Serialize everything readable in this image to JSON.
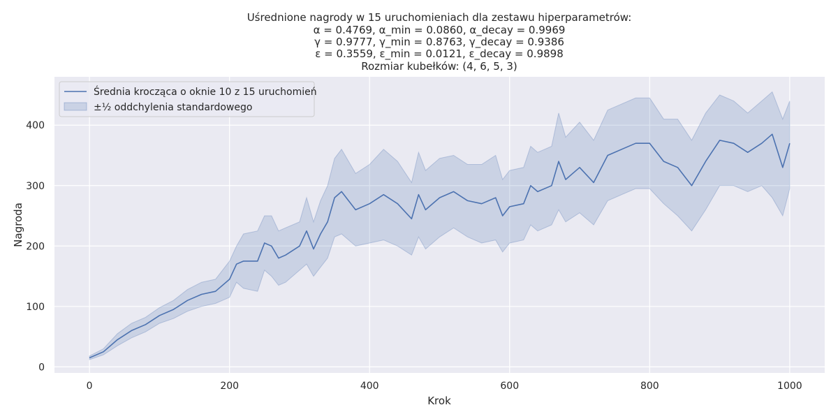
{
  "chart_data": {
    "type": "line",
    "title_lines": [
      "Uśrednione nagrody w 15 uruchomieniach dla zestawu hiperparametrów:",
      "α = 0.4769, α_min = 0.0860, α_decay = 0.9969",
      "γ = 0.9777, γ_min = 0.8763, γ_decay = 0.9386",
      "ε = 0.3559, ε_min = 0.0121, ε_decay = 0.9898",
      "Rozmiar kubełków: (4, 6, 5, 3)"
    ],
    "xlabel": "Krok",
    "ylabel": "Nagroda",
    "xlim": [
      -50,
      1050
    ],
    "ylim": [
      -10,
      480
    ],
    "xticks": [
      0,
      200,
      400,
      600,
      800,
      1000
    ],
    "yticks": [
      0,
      100,
      200,
      300,
      400
    ],
    "grid": true,
    "legend_position": "top-left",
    "colors": {
      "line": "#4c72b0",
      "band": "#4c72b0",
      "background": "#eaeaf2",
      "grid": "#ffffff"
    },
    "series": [
      {
        "name": "Średnia krocząca o oknie 10 z 15 uruchomień",
        "x": [
          0,
          20,
          40,
          60,
          80,
          100,
          120,
          140,
          160,
          180,
          200,
          210,
          220,
          240,
          250,
          260,
          270,
          280,
          300,
          310,
          320,
          330,
          340,
          350,
          360,
          380,
          400,
          420,
          440,
          460,
          470,
          480,
          500,
          520,
          540,
          560,
          580,
          590,
          600,
          620,
          630,
          640,
          660,
          670,
          680,
          700,
          720,
          740,
          760,
          780,
          800,
          820,
          840,
          860,
          880,
          900,
          920,
          940,
          960,
          975,
          990,
          1000
        ],
        "values": [
          15,
          25,
          45,
          60,
          70,
          85,
          95,
          110,
          120,
          125,
          145,
          170,
          175,
          175,
          205,
          200,
          180,
          185,
          200,
          225,
          195,
          220,
          240,
          280,
          290,
          260,
          270,
          285,
          270,
          245,
          285,
          260,
          280,
          290,
          275,
          270,
          280,
          250,
          265,
          270,
          300,
          290,
          300,
          340,
          310,
          330,
          305,
          350,
          360,
          370,
          370,
          340,
          330,
          300,
          340,
          375,
          370,
          355,
          370,
          385,
          330,
          370
        ]
      }
    ],
    "band": {
      "name": "±½ oddchylenia standardowego",
      "lower": [
        12,
        20,
        35,
        48,
        58,
        72,
        80,
        92,
        100,
        105,
        115,
        140,
        130,
        125,
        160,
        150,
        135,
        140,
        160,
        170,
        150,
        165,
        180,
        215,
        220,
        200,
        205,
        210,
        200,
        185,
        215,
        195,
        215,
        230,
        215,
        205,
        210,
        190,
        205,
        210,
        235,
        225,
        235,
        260,
        240,
        255,
        235,
        275,
        285,
        295,
        295,
        270,
        250,
        225,
        260,
        300,
        300,
        290,
        300,
        280,
        250,
        295
      ],
      "upper": [
        18,
        30,
        55,
        72,
        82,
        98,
        110,
        128,
        140,
        145,
        175,
        200,
        220,
        225,
        250,
        250,
        225,
        230,
        240,
        280,
        240,
        275,
        300,
        345,
        360,
        320,
        335,
        360,
        340,
        305,
        355,
        325,
        345,
        350,
        335,
        335,
        350,
        310,
        325,
        330,
        365,
        355,
        365,
        420,
        380,
        405,
        375,
        425,
        435,
        445,
        445,
        410,
        410,
        375,
        420,
        450,
        440,
        420,
        440,
        455,
        410,
        440
      ]
    }
  }
}
